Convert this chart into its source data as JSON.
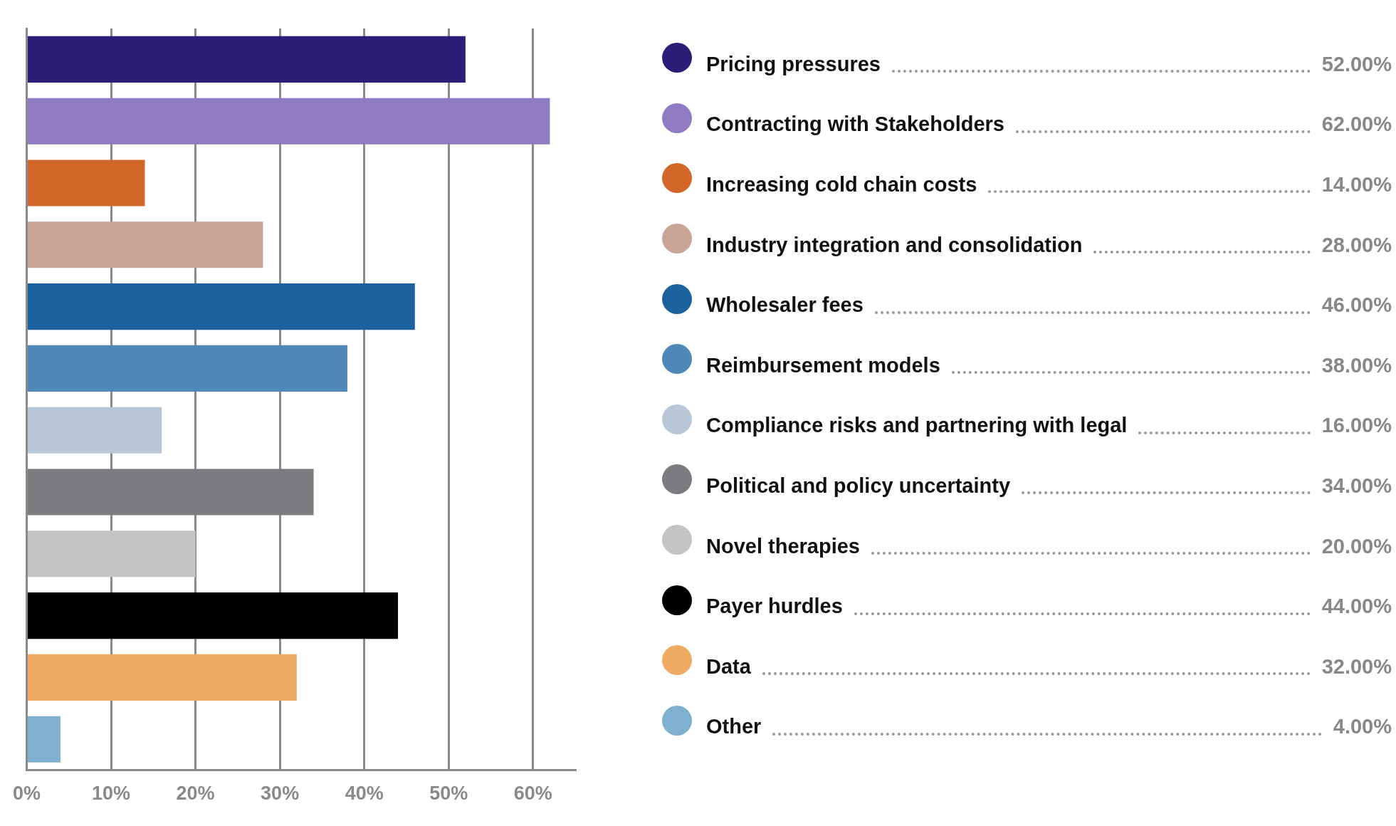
{
  "chart_data": {
    "type": "bar",
    "orientation": "horizontal",
    "categories": [
      "Pricing pressures",
      "Contracting with Stakeholders",
      "Increasing cold chain costs",
      "Industry integration and consolidation",
      "Wholesaler fees",
      "Reimbursement models",
      "Compliance risks and partnering with legal",
      "Political and policy uncertainty",
      "Novel therapies",
      "Payer hurdles",
      "Data",
      "Other"
    ],
    "values": [
      52,
      62,
      14,
      28,
      46,
      38,
      16,
      34,
      20,
      44,
      32,
      4
    ],
    "value_labels": [
      "52.00%",
      "62.00%",
      "14.00%",
      "28.00%",
      "46.00%",
      "38.00%",
      "16.00%",
      "34.00%",
      "20.00%",
      "44.00%",
      "32.00%",
      "4.00%"
    ],
    "colors": [
      "#2e1d78",
      "#8e7bc2",
      "#d3672a",
      "#c9a597",
      "#1c62a0",
      "#4f88b8",
      "#b8c7d6",
      "#7b7c80",
      "#c4c4c6",
      "#000000",
      "#f0ab62",
      "#7fb0cf"
    ],
    "xlim": [
      0,
      65
    ],
    "xticks": [
      {
        "value": 0,
        "label": "0%"
      },
      {
        "value": 10,
        "label": "10%"
      },
      {
        "value": 20,
        "label": "20%"
      },
      {
        "value": 30,
        "label": "30%"
      },
      {
        "value": 40,
        "label": "40%"
      },
      {
        "value": 50,
        "label": "50%"
      },
      {
        "value": 60,
        "label": "60%"
      }
    ],
    "grid": "x",
    "tick_labels": "x"
  }
}
